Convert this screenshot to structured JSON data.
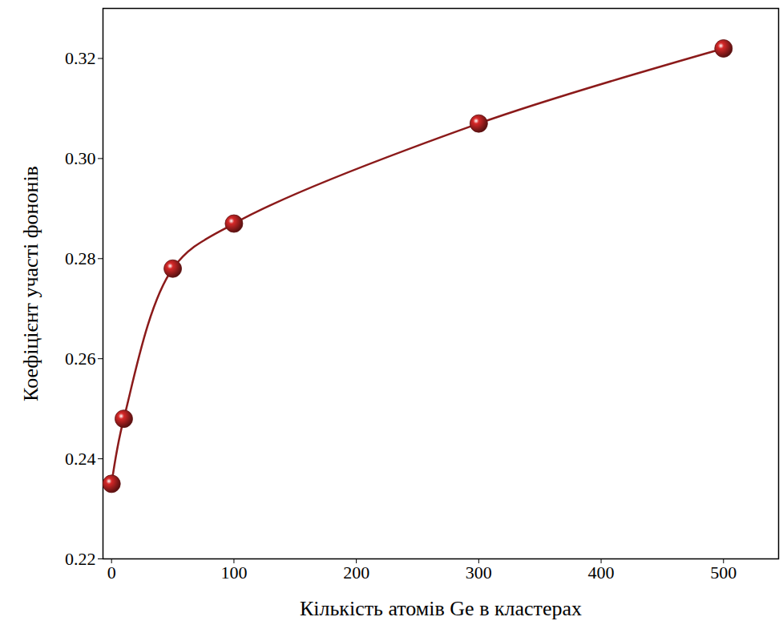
{
  "chart_data": {
    "type": "line",
    "x_label": "Кількість атомів Ge в кластерах",
    "y_label": "Коефіцієнт участі фононів",
    "x": [
      0,
      10,
      50,
      100,
      300,
      500
    ],
    "values": [
      0.235,
      0.248,
      0.278,
      0.287,
      0.307,
      0.322
    ],
    "color": "#8b1a1a",
    "marker": "sphere",
    "line_style": "smooth",
    "grid": false,
    "xlim": [
      -7,
      545
    ],
    "ylim": [
      0.22,
      0.33
    ],
    "xticks": [
      0,
      100,
      200,
      300,
      400,
      500
    ],
    "yticks": [
      0.22,
      0.24,
      0.26,
      0.28,
      {
        "value": 0.3,
        "label": "0.30"
      },
      0.32
    ]
  }
}
